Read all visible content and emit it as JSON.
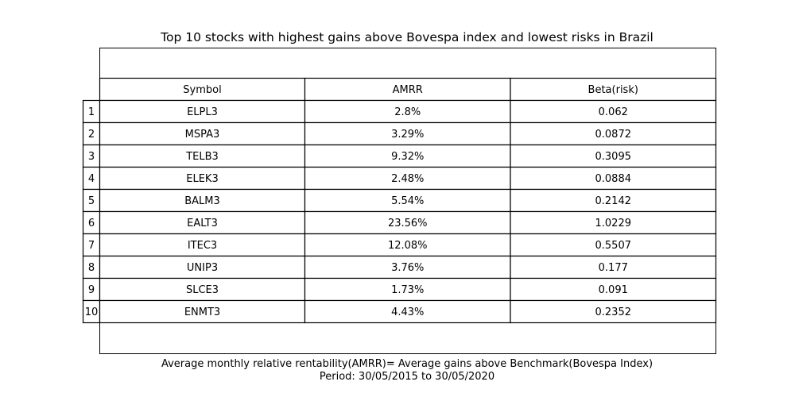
{
  "chart_data": {
    "type": "table",
    "title": "Top 10 stocks with highest gains above Bovespa index and lowest risks in Brazil",
    "columns": [
      "Symbol",
      "AMRR",
      "Beta(risk)"
    ],
    "row_labels": [
      "1",
      "2",
      "3",
      "4",
      "5",
      "6",
      "7",
      "8",
      "9",
      "10"
    ],
    "rows": [
      [
        "ELPL3",
        "2.8%",
        "0.062"
      ],
      [
        "MSPA3",
        "3.29%",
        "0.0872"
      ],
      [
        "TELB3",
        "9.32%",
        "0.3095"
      ],
      [
        "ELEK3",
        "2.48%",
        "0.0884"
      ],
      [
        "BALM3",
        "5.54%",
        "0.2142"
      ],
      [
        "EALT3",
        "23.56%",
        "1.0229"
      ],
      [
        "ITEC3",
        "12.08%",
        "0.5507"
      ],
      [
        "UNIP3",
        "3.76%",
        "0.177"
      ],
      [
        "SLCE3",
        "1.73%",
        "0.091"
      ],
      [
        "ENMT3",
        "4.43%",
        "0.2352"
      ]
    ],
    "footnote_lines": [
      "Average monthly relative rentability(AMRR)= Average gains above Benchmark(Bovespa Index)",
      "Period: 30/05/2015 to 30/05/2020"
    ]
  }
}
